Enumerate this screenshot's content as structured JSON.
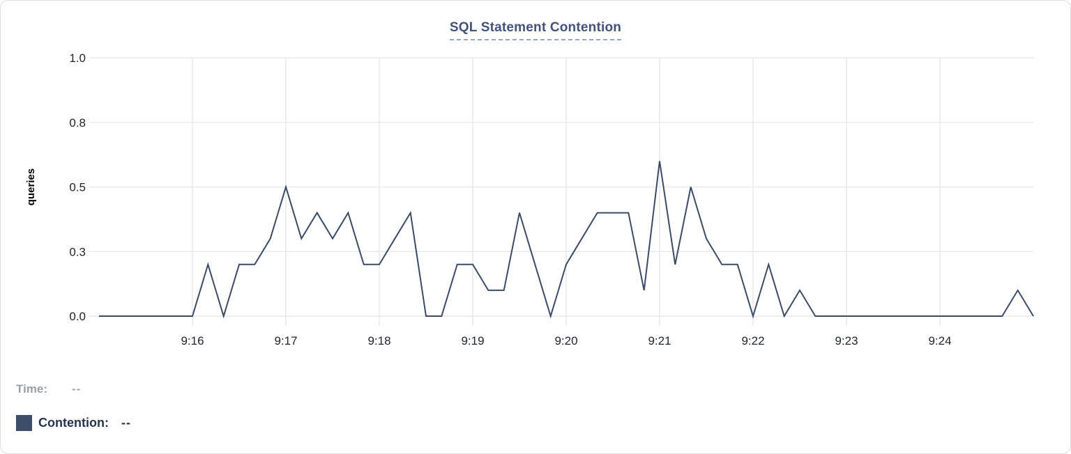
{
  "panel": {
    "background": "#ffffff",
    "border_color": "#dedede"
  },
  "title": {
    "text": "SQL Statement Contention",
    "color": "#44527b",
    "underline_color": "#9aa5c6"
  },
  "chart_data": {
    "type": "line",
    "title": "SQL Statement Contention",
    "xlabel": "",
    "ylabel": "queries",
    "ylim": [
      0,
      1.0
    ],
    "grid": true,
    "gridline_color": "#e9e9e9",
    "tick_text_color": "#212530",
    "y_ticks": [
      {
        "value": 0,
        "label": "0.0"
      },
      {
        "value": 0.25,
        "label": "0.3"
      },
      {
        "value": 0.5,
        "label": "0.5"
      },
      {
        "value": 0.75,
        "label": "0.8"
      },
      {
        "value": 1,
        "label": "1.0"
      }
    ],
    "x_ticks": [
      {
        "t": 60,
        "label": "9:16"
      },
      {
        "t": 120,
        "label": "9:17"
      },
      {
        "t": 180,
        "label": "9:18"
      },
      {
        "t": 240,
        "label": "9:19"
      },
      {
        "t": 300,
        "label": "9:20"
      },
      {
        "t": 360,
        "label": "9:21"
      },
      {
        "t": 420,
        "label": "9:22"
      },
      {
        "t": 480,
        "label": "9:23"
      },
      {
        "t": 540,
        "label": "9:24"
      }
    ],
    "x_domain": {
      "start_time": "9:15:00",
      "end_time": "9:25:00",
      "total_seconds": 600
    },
    "series": [
      {
        "name": "Contention",
        "color": "#3b4a66",
        "interval_seconds": 10,
        "start_time": "9:15:00",
        "values": [
          0,
          0,
          0,
          0,
          0,
          0,
          0,
          0.2,
          0,
          0.2,
          0.2,
          0.3,
          0.5,
          0.3,
          0.4,
          0.3,
          0.4,
          0.2,
          0.2,
          0.3,
          0.4,
          0,
          0,
          0.2,
          0.2,
          0.1,
          0.1,
          0.4,
          0.2,
          0,
          0.2,
          0.3,
          0.4,
          0.4,
          0.4,
          0.1,
          0.6,
          0.2,
          0.5,
          0.3,
          0.2,
          0.2,
          0,
          0.2,
          0,
          0.1,
          0,
          0,
          0,
          0,
          0,
          0,
          0,
          0,
          0,
          0,
          0,
          0,
          0,
          0.1,
          0
        ]
      }
    ],
    "legend_position": "bottom-left"
  },
  "legend": {
    "time_label": "Time:",
    "time_value": "--",
    "series_label": "Contention:",
    "series_value": "--",
    "swatch_color": "#3e4d68",
    "time_color": "#9a9fa8",
    "series_text_color": "#24344f"
  }
}
